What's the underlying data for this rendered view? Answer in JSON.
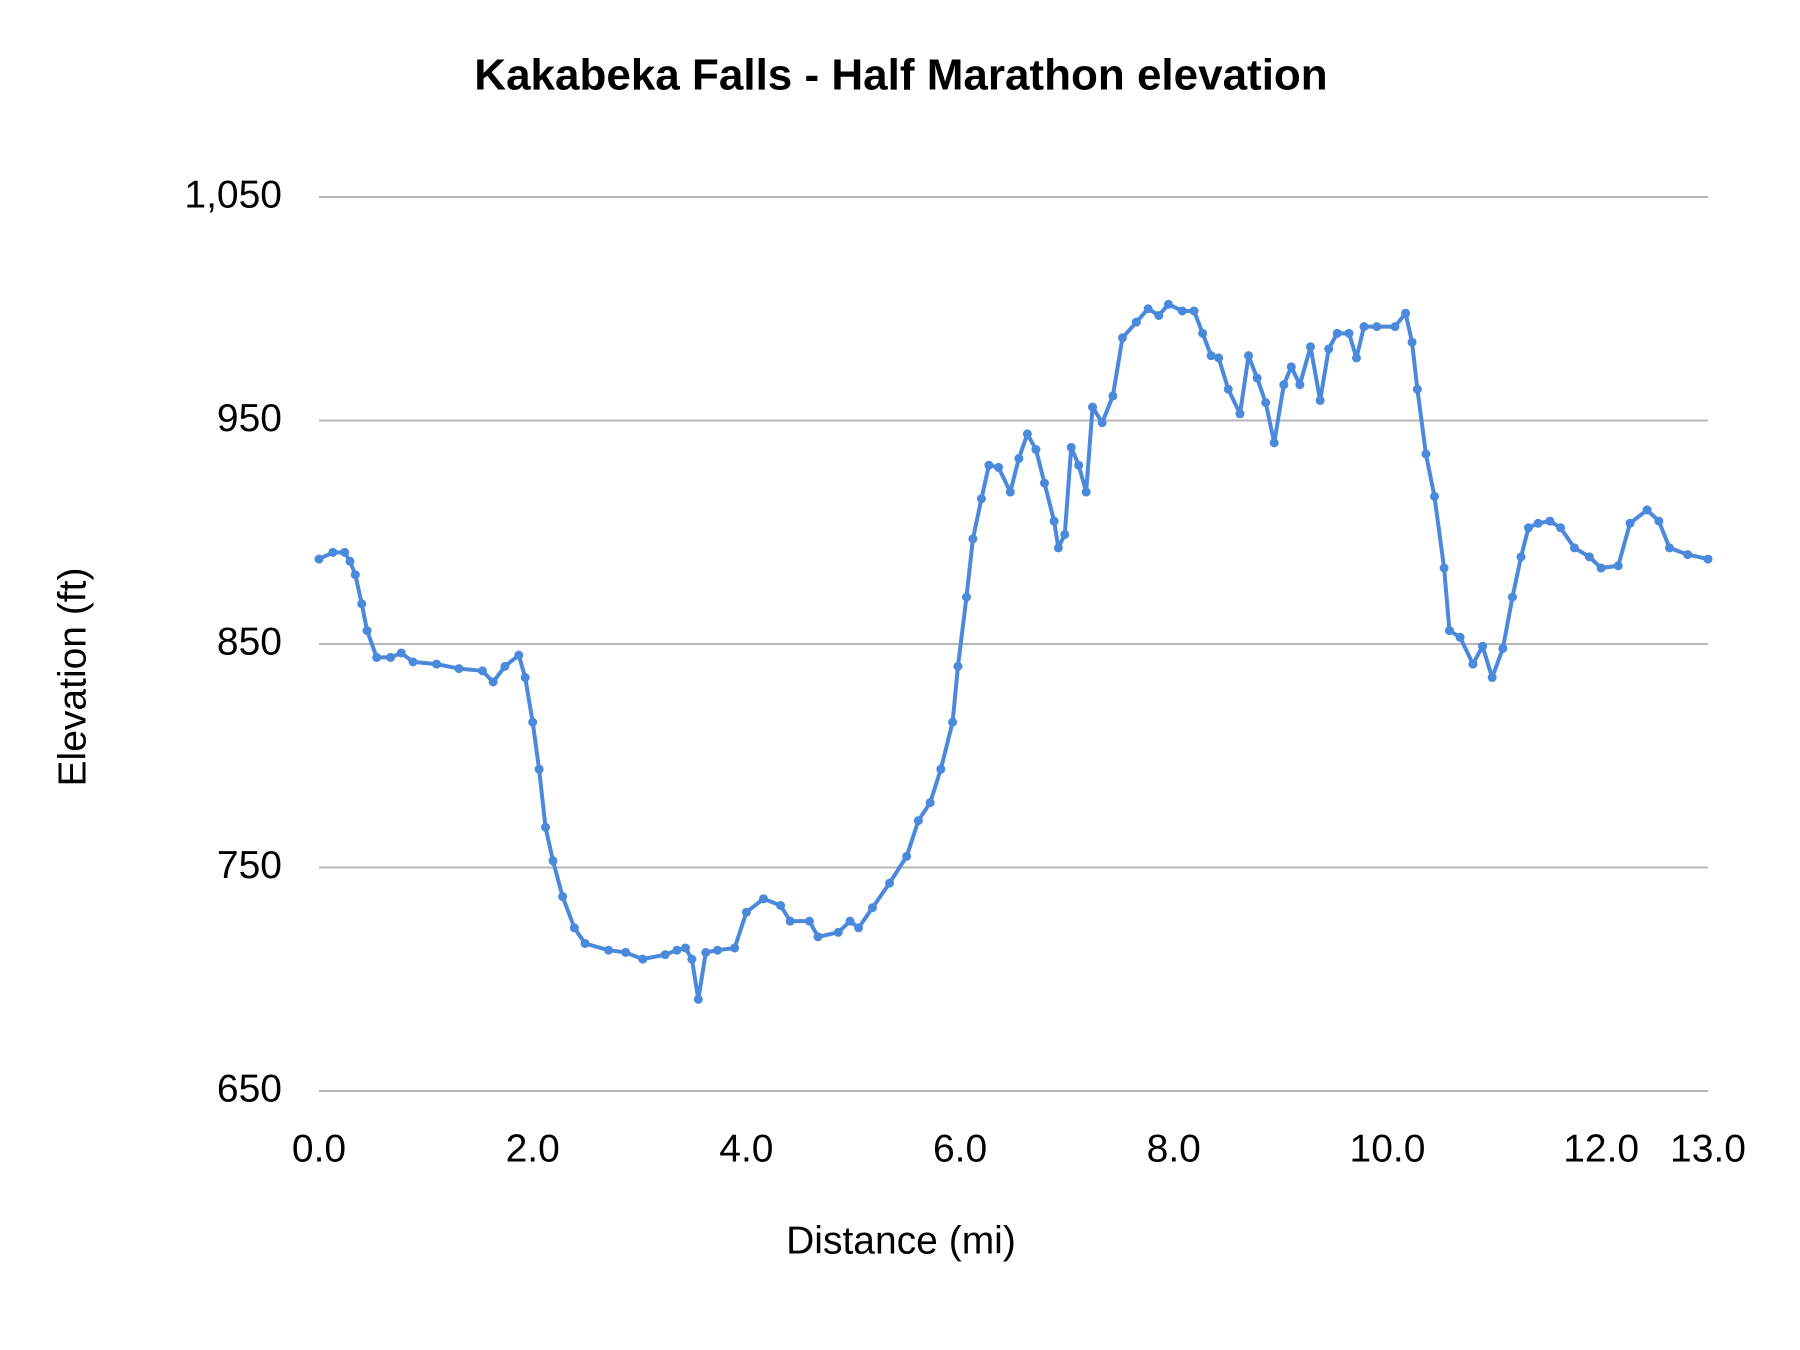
{
  "chart_data": {
    "type": "line",
    "title": "Kakabeka Falls - Half Marathon elevation",
    "x_label": "Distance (mi)",
    "y_label": "Elevation (ft)",
    "color": "#4a89dc",
    "grid": true,
    "markers": true,
    "xlim": [
      0,
      13
    ],
    "ylim": [
      650,
      1050
    ],
    "xticks": [
      {
        "value": 0,
        "label": "0.0"
      },
      {
        "value": 2,
        "label": "2.0"
      },
      {
        "value": 4,
        "label": "4.0"
      },
      {
        "value": 6,
        "label": "6.0"
      },
      {
        "value": 8,
        "label": "8.0"
      },
      {
        "value": 10,
        "label": "10.0"
      },
      {
        "value": 12,
        "label": "12.0"
      },
      {
        "value": 13,
        "label": "13.0"
      }
    ],
    "yticks": [
      650,
      750,
      850,
      950,
      {
        "value": 1050,
        "label": "1,050"
      }
    ],
    "x": [
      0,
      0.13,
      0.24,
      0.29,
      0.34,
      0.4,
      0.45,
      0.54,
      0.67,
      0.77,
      0.88,
      1.1,
      1.31,
      1.53,
      1.63,
      1.74,
      1.87,
      1.93,
      2.0,
      2.06,
      2.12,
      2.19,
      2.28,
      2.39,
      2.49,
      2.71,
      2.87,
      3.03,
      3.24,
      3.35,
      3.43,
      3.49,
      3.55,
      3.62,
      3.73,
      3.89,
      4.0,
      4.16,
      4.32,
      4.41,
      4.59,
      4.67,
      4.86,
      4.97,
      5.05,
      5.18,
      5.34,
      5.5,
      5.61,
      5.72,
      5.82,
      5.93,
      5.98,
      6.06,
      6.12,
      6.2,
      6.27,
      6.36,
      6.47,
      6.55,
      6.63,
      6.71,
      6.79,
      6.88,
      6.92,
      6.98,
      7.04,
      7.11,
      7.18,
      7.24,
      7.33,
      7.43,
      7.52,
      7.65,
      7.76,
      7.86,
      7.95,
      8.08,
      8.19,
      8.27,
      8.35,
      8.42,
      8.51,
      8.62,
      8.7,
      8.78,
      8.86,
      8.94,
      9.03,
      9.1,
      9.18,
      9.28,
      9.37,
      9.45,
      9.53,
      9.64,
      9.71,
      9.78,
      9.9,
      10.07,
      10.17,
      10.23,
      10.28,
      10.36,
      10.44,
      10.53,
      10.58,
      10.68,
      10.8,
      10.89,
      10.98,
      11.08,
      11.17,
      11.25,
      11.32,
      11.41,
      11.52,
      11.62,
      11.75,
      11.89,
      12.0,
      12.16,
      12.27,
      12.43,
      12.54,
      12.64,
      12.81,
      13.0
    ],
    "values": [
      888,
      891,
      891,
      887,
      881,
      868,
      856,
      844,
      844,
      846,
      842,
      841,
      839,
      838,
      833,
      840,
      845,
      835,
      815,
      794,
      768,
      753,
      737,
      723,
      716,
      713,
      712,
      709,
      711,
      713,
      714,
      709,
      691,
      712,
      713,
      714,
      730,
      736,
      733,
      726,
      726,
      719,
      721,
      726,
      723,
      732,
      743,
      755,
      771,
      779,
      794,
      815,
      840,
      871,
      897,
      915,
      930,
      929,
      918,
      933,
      944,
      937,
      922,
      905,
      893,
      899,
      938,
      930,
      918,
      956,
      949,
      961,
      987,
      994,
      1000,
      997,
      1002,
      999,
      999,
      989,
      979,
      978,
      964,
      953,
      979,
      969,
      958,
      940,
      966,
      974,
      966,
      983,
      959,
      982,
      989,
      989,
      978,
      992,
      992,
      992,
      998,
      985,
      964,
      935,
      916,
      884,
      856,
      853,
      841,
      849,
      835,
      848,
      871,
      889,
      902,
      904,
      905,
      902,
      893,
      889,
      884,
      885,
      904,
      910,
      905,
      893,
      890,
      888
    ]
  }
}
